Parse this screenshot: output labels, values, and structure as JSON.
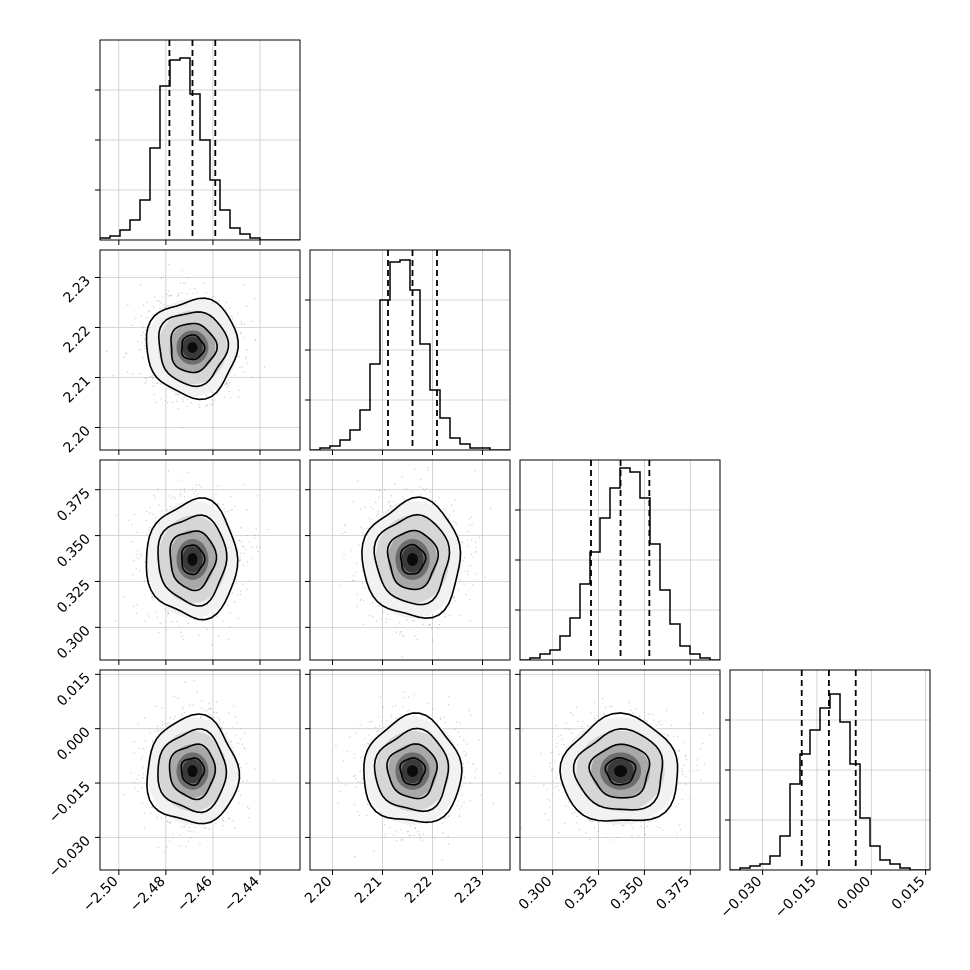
{
  "chart_data": {
    "type": "corner",
    "title": "",
    "grid": true,
    "parameters": [
      {
        "range": [
          -2.508,
          -2.423
        ],
        "ticks": [
          -2.5,
          -2.48,
          -2.46,
          -2.44
        ],
        "tick_labels": [
          "−2.50",
          "−2.48",
          "−2.46",
          "−2.44"
        ],
        "quantiles": [
          -2.4785,
          -2.4687,
          -2.459
        ],
        "mean": -2.4687,
        "sd": 0.0097,
        "hist_heights": [
          0.01,
          0.02,
          0.05,
          0.1,
          0.2,
          0.46,
          0.77,
          0.9,
          0.91,
          0.73,
          0.5,
          0.3,
          0.15,
          0.06,
          0.03,
          0.01,
          0.0,
          0.0,
          0.0,
          0.0
        ]
      },
      {
        "range": [
          2.1955,
          2.2355
        ],
        "ticks": [
          2.2,
          2.21,
          2.22,
          2.23
        ],
        "tick_labels": [
          "2.20",
          "2.21",
          "2.22",
          "2.23"
        ],
        "quantiles": [
          2.2111,
          2.216,
          2.2209
        ],
        "mean": 2.216,
        "sd": 0.0049,
        "hist_heights": [
          0.0,
          0.01,
          0.02,
          0.05,
          0.1,
          0.2,
          0.43,
          0.75,
          0.94,
          0.95,
          0.8,
          0.53,
          0.3,
          0.16,
          0.06,
          0.03,
          0.01,
          0.01,
          0.0,
          0.0
        ]
      },
      {
        "range": [
          0.2822,
          0.3912
        ],
        "ticks": [
          0.3,
          0.325,
          0.35,
          0.375
        ],
        "tick_labels": [
          "0.300",
          "0.325",
          "0.350",
          "0.375"
        ],
        "quantiles": [
          0.3209,
          0.337,
          0.3527
        ],
        "mean": 0.337,
        "sd": 0.016,
        "hist_heights": [
          0.0,
          0.01,
          0.03,
          0.05,
          0.12,
          0.21,
          0.38,
          0.54,
          0.71,
          0.86,
          0.96,
          0.94,
          0.81,
          0.58,
          0.35,
          0.18,
          0.07,
          0.03,
          0.01,
          0.0
        ]
      },
      {
        "range": [
          -0.039,
          0.0162
        ],
        "ticks": [
          -0.03,
          -0.015,
          0.0,
          0.015
        ],
        "tick_labels": [
          "−0.030",
          "−0.015",
          "0.000",
          "0.015"
        ],
        "quantiles": [
          -0.0192,
          -0.0117,
          -0.0043
        ],
        "mean": -0.0117,
        "sd": 0.0074,
        "hist_heights": [
          0.0,
          0.01,
          0.02,
          0.03,
          0.07,
          0.17,
          0.43,
          0.58,
          0.7,
          0.81,
          0.88,
          0.74,
          0.53,
          0.26,
          0.12,
          0.05,
          0.03,
          0.01,
          0.0,
          0.0
        ]
      }
    ],
    "contour_levels_sigma": [
      0.5,
      1.0,
      1.5,
      2.0
    ],
    "line_color": "#000000",
    "grid_color": "#c8c8c8",
    "scatter_color": "#9a9a9a"
  }
}
